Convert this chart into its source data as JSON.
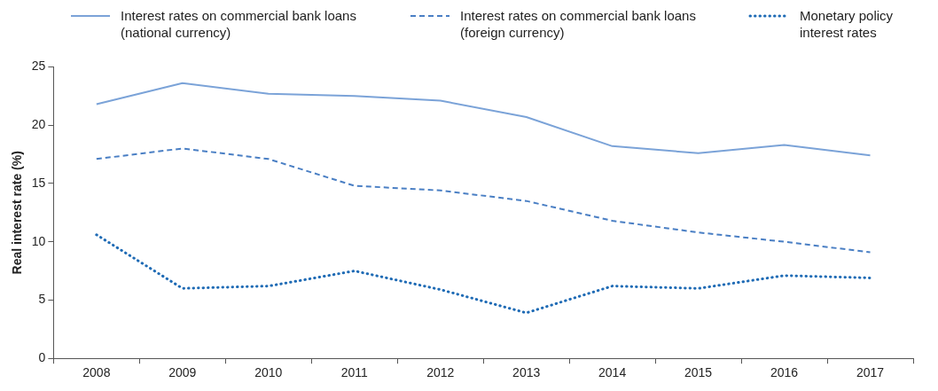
{
  "chart_data": {
    "type": "line",
    "ylabel": "Real interest rate (%)",
    "categories": [
      "2008",
      "2009",
      "2010",
      "2011",
      "2012",
      "2013",
      "2014",
      "2015",
      "2016",
      "2017"
    ],
    "ylim": [
      0,
      25
    ],
    "yticks": [
      0,
      5,
      10,
      15,
      20,
      25
    ],
    "grid": false,
    "legend": "top",
    "marker": "none",
    "series": [
      {
        "name": "Interest rates on commercial bank loans (national currency)",
        "color": "#7ba3d8",
        "line_style": "solid",
        "values": [
          21.8,
          23.6,
          22.7,
          22.5,
          22.1,
          20.7,
          18.2,
          17.6,
          18.3,
          17.4
        ]
      },
      {
        "name": "Interest rates on commercial bank loans (foreign currency)",
        "color": "#4a7fc4",
        "line_style": "dashed",
        "values": [
          17.1,
          18.0,
          17.1,
          14.8,
          14.4,
          13.5,
          11.8,
          10.8,
          10.0,
          9.1
        ]
      },
      {
        "name": "Monetary policy interest rates",
        "color": "#1f6bb5",
        "line_style": "dotted",
        "values": [
          10.6,
          6.0,
          6.2,
          7.5,
          5.9,
          3.9,
          6.2,
          6.0,
          7.1,
          6.9
        ]
      }
    ]
  }
}
